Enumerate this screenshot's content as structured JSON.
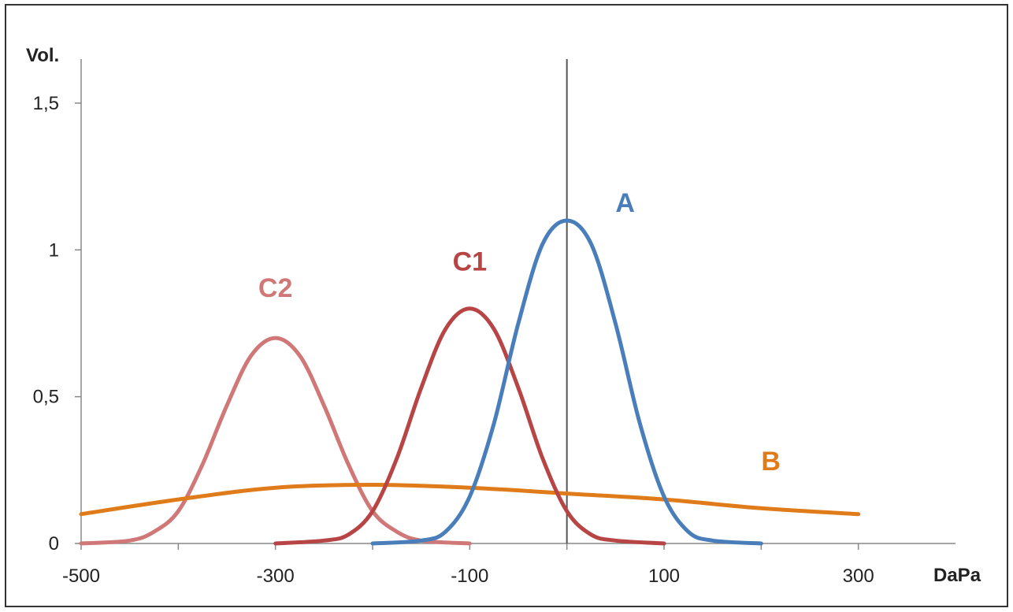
{
  "chart_data": {
    "type": "line",
    "title": "",
    "xlabel": "DaPa",
    "ylabel": "Vol.",
    "xlim": [
      -500,
      400
    ],
    "ylim": [
      0,
      1.65
    ],
    "x_ticks": [
      -500,
      -300,
      -100,
      100,
      300
    ],
    "x_tick_labels": [
      "-500",
      "-300",
      "-100",
      "100",
      "300"
    ],
    "y_ticks": [
      0,
      0.5,
      1,
      1.5
    ],
    "y_tick_labels": [
      "0",
      "0,5",
      "1",
      "1,5"
    ],
    "grid": false,
    "reference_line_x": 0,
    "series": [
      {
        "name": "A",
        "color": "#4a7ebb",
        "x": [
          -200,
          -150,
          -125,
          -100,
          -75,
          -50,
          -25,
          0,
          25,
          50,
          75,
          100,
          125,
          150,
          200
        ],
        "y": [
          0,
          0.01,
          0.04,
          0.16,
          0.41,
          0.75,
          1.02,
          1.1,
          1.02,
          0.75,
          0.41,
          0.16,
          0.04,
          0.01,
          0
        ]
      },
      {
        "name": "C1",
        "color": "#b84545",
        "x": [
          -300,
          -250,
          -225,
          -200,
          -175,
          -150,
          -125,
          -100,
          -75,
          -50,
          -25,
          0,
          25,
          50,
          100
        ],
        "y": [
          0,
          0.01,
          0.03,
          0.11,
          0.29,
          0.53,
          0.73,
          0.8,
          0.73,
          0.53,
          0.29,
          0.11,
          0.03,
          0.01,
          0
        ]
      },
      {
        "name": "C2",
        "color": "#d07878",
        "x": [
          -500,
          -450,
          -425,
          -400,
          -375,
          -350,
          -325,
          -300,
          -275,
          -250,
          -225,
          -200,
          -175,
          -150,
          -100
        ],
        "y": [
          0,
          0.01,
          0.04,
          0.11,
          0.27,
          0.47,
          0.64,
          0.7,
          0.64,
          0.47,
          0.27,
          0.11,
          0.04,
          0.01,
          0
        ]
      },
      {
        "name": "B",
        "color": "#e07b1a",
        "x": [
          -500,
          -400,
          -300,
          -200,
          -100,
          0,
          100,
          200,
          300
        ],
        "y": [
          0.1,
          0.15,
          0.19,
          0.2,
          0.19,
          0.17,
          0.15,
          0.12,
          0.1
        ]
      }
    ],
    "labels": [
      {
        "text": "A",
        "x": 60,
        "y": 1.13
      },
      {
        "text": "C1",
        "x": -100,
        "y": 0.93
      },
      {
        "text": "C2",
        "x": -300,
        "y": 0.84
      },
      {
        "text": "B",
        "x": 210,
        "y": 0.25
      }
    ]
  }
}
